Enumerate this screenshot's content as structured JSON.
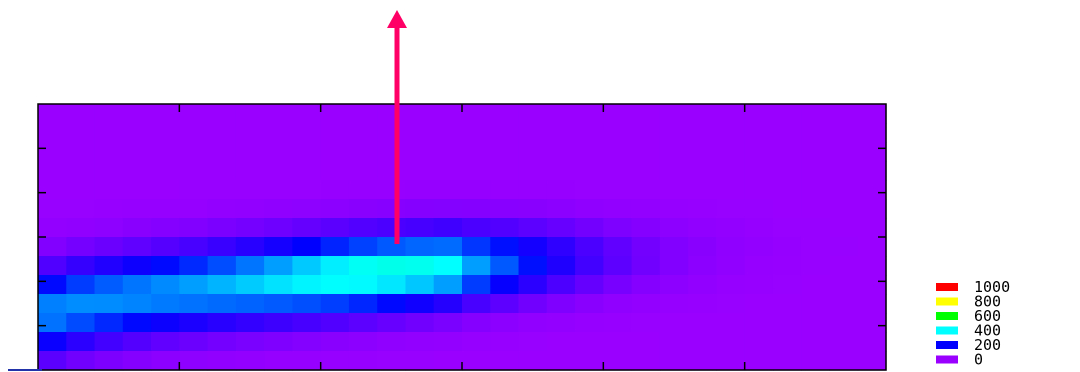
{
  "chart_data": {
    "type": "heatmap",
    "title": "",
    "xlabel": "",
    "ylabel": "",
    "grid": false,
    "legend_placement": "right-bottom",
    "x_ticks": 6,
    "y_ticks": 6,
    "colorscale": [
      {
        "label": "1000",
        "value": 1000,
        "color": "#ff0000"
      },
      {
        "label": "800",
        "value": 800,
        "color": "#ffff00"
      },
      {
        "label": "600",
        "value": 600,
        "color": "#00ff00"
      },
      {
        "label": "400",
        "value": 400,
        "color": "#00ffff"
      },
      {
        "label": "200",
        "value": 200,
        "color": "#0000ff"
      },
      {
        "label": "0",
        "value": 0,
        "color": "#9900ff"
      }
    ],
    "cols": 30,
    "rows": 14,
    "ridge_peak_value": 430,
    "arrow_color": "#ff0066"
  }
}
